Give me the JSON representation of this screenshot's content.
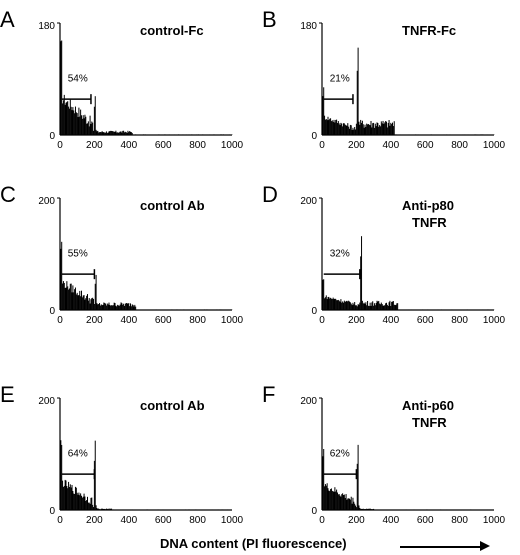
{
  "chart_data": [
    {
      "type": "bar",
      "panel": "A",
      "title": "control-Fc",
      "ylim": [
        0,
        180
      ],
      "xlim": [
        0,
        1000
      ],
      "y_ticks": [
        0,
        180
      ],
      "x_ticks": [
        0,
        200,
        400,
        600,
        800,
        1000
      ],
      "gate_percent": "54%",
      "gate": [
        10,
        180
      ],
      "g1_position": 200,
      "g1_peak": 75,
      "subg1_peak": 155,
      "subg1_level": 55,
      "g2_level": 5,
      "g2_end": 420,
      "tail_level": 1
    },
    {
      "type": "bar",
      "panel": "B",
      "title": "TNFR-Fc",
      "ylim": [
        0,
        180
      ],
      "xlim": [
        0,
        1000
      ],
      "y_ticks": [
        0,
        180
      ],
      "x_ticks": [
        0,
        200,
        400,
        600,
        800,
        1000
      ],
      "gate_percent": "21%",
      "gate": [
        10,
        180
      ],
      "g1_position": 205,
      "g1_peak": 165,
      "subg1_peak": 80,
      "subg1_level": 25,
      "g2_level": 18,
      "g2_end": 420,
      "tail_level": 1
    },
    {
      "type": "bar",
      "panel": "C",
      "title": "control Ab",
      "ylim": [
        0,
        200
      ],
      "xlim": [
        0,
        1000
      ],
      "y_ticks": [
        0,
        200
      ],
      "x_ticks": [
        0,
        200,
        400,
        600,
        800,
        1000
      ],
      "gate_percent": "55%",
      "gate": [
        10,
        200
      ],
      "g1_position": 205,
      "g1_peak": 70,
      "subg1_peak": 130,
      "subg1_level": 45,
      "g2_level": 10,
      "g2_end": 440,
      "tail_level": 1
    },
    {
      "type": "bar",
      "panel": "D",
      "title": "Anti-p80",
      "title2": "TNFR",
      "ylim": [
        0,
        200
      ],
      "xlim": [
        0,
        1000
      ],
      "y_ticks": [
        0,
        200
      ],
      "x_ticks": [
        0,
        200,
        400,
        600,
        800,
        1000
      ],
      "gate_percent": "32%",
      "gate": [
        10,
        220
      ],
      "g1_position": 225,
      "g1_peak": 160,
      "subg1_peak": 60,
      "subg1_level": 20,
      "g2_level": 12,
      "g2_end": 440,
      "tail_level": 1
    },
    {
      "type": "bar",
      "panel": "E",
      "title": "control Ab",
      "ylim": [
        0,
        200
      ],
      "xlim": [
        0,
        1000
      ],
      "y_ticks": [
        0,
        200
      ],
      "x_ticks": [
        0,
        200,
        400,
        600,
        800,
        1000
      ],
      "gate_percent": "64%",
      "gate": [
        10,
        200
      ],
      "g1_position": 200,
      "g1_peak": 160,
      "subg1_peak": 130,
      "subg1_level": 45,
      "g2_level": 2,
      "g2_end": 300,
      "tail_level": 1
    },
    {
      "type": "bar",
      "panel": "F",
      "title": "Anti-p60",
      "title2": "TNFR",
      "ylim": [
        0,
        200
      ],
      "xlim": [
        0,
        1000
      ],
      "y_ticks": [
        0,
        200
      ],
      "x_ticks": [
        0,
        200,
        400,
        600,
        800,
        1000
      ],
      "gate_percent": "62%",
      "gate": [
        10,
        200
      ],
      "g1_position": 205,
      "g1_peak": 150,
      "subg1_peak": 125,
      "subg1_level": 40,
      "g2_level": 2,
      "g2_end": 300,
      "tail_level": 1
    }
  ],
  "xlabel": "DNA content (PI fluorescence)"
}
